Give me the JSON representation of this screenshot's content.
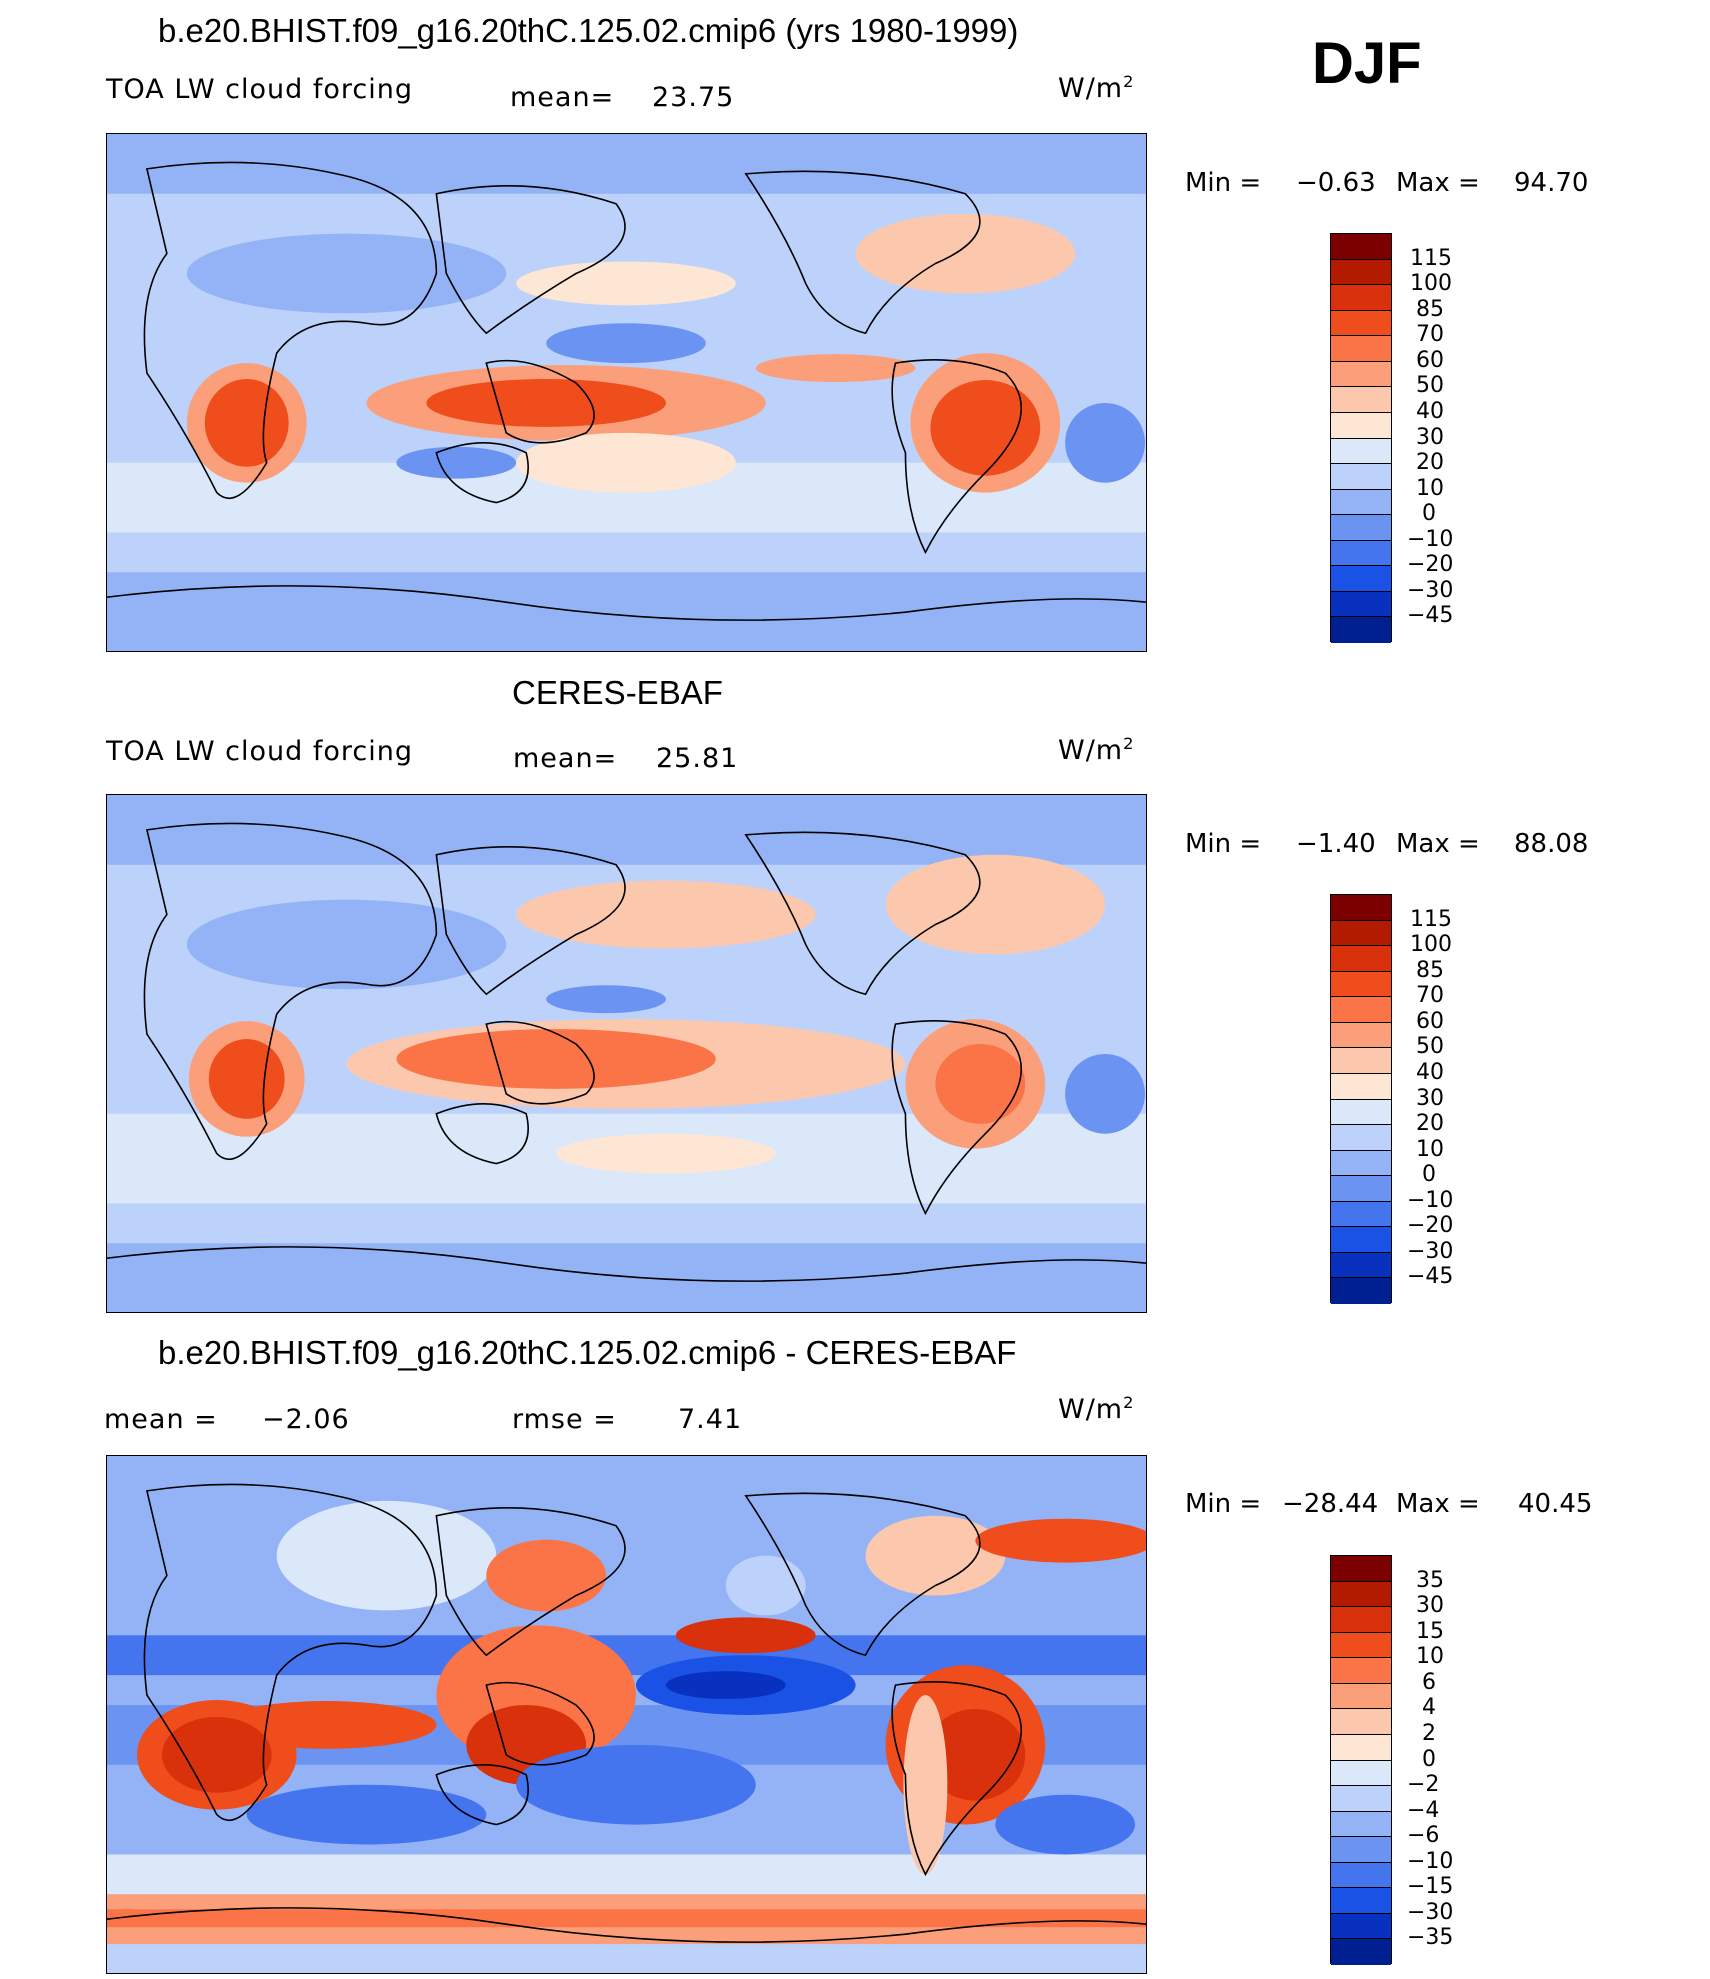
{
  "season": "DJF",
  "units": "W/m",
  "units_exp": "2",
  "panels": [
    {
      "title": "b.e20.BHIST.f09_g16.20thC.125.02.cmip6 (yrs 1980-1999)",
      "left_label": "TOA LW cloud forcing",
      "stat_label": "mean=",
      "stat_value": "23.75",
      "min_label": "Min  =",
      "min_value": "−0.63",
      "max_label": "Max  =",
      "max_value": "94.70"
    },
    {
      "title": "CERES-EBAF",
      "left_label": "TOA LW cloud forcing",
      "stat_label": "mean=",
      "stat_value": "25.81",
      "min_label": "Min  =",
      "min_value": "−1.40",
      "max_label": "Max  =",
      "max_value": "88.08"
    },
    {
      "title": "b.e20.BHIST.f09_g16.20thC.125.02.cmip6 - CERES-EBAF",
      "left_label": "mean  =",
      "left_value": "−2.06",
      "stat_label": "rmse  =",
      "stat_value": "7.41",
      "min_label": "Min  =",
      "min_value": "−28.44",
      "max_label": "Max  =",
      "max_value": "40.45"
    }
  ],
  "colorbar_abs": {
    "labels": [
      "115",
      "100",
      "85",
      "70",
      "60",
      "50",
      "40",
      "30",
      "20",
      "10",
      "0",
      "−10",
      "−20",
      "−30",
      "−45"
    ],
    "colors": [
      "#7d0000",
      "#b21b00",
      "#d8310b",
      "#f04d1c",
      "#fb7447",
      "#fb9e7a",
      "#fcc8ad",
      "#fde6d3",
      "#dbe8fa",
      "#bcd2fb",
      "#94b3f7",
      "#6b93f2",
      "#4474ee",
      "#1b52e6",
      "#0831c0",
      "#001f91"
    ]
  },
  "colorbar_diff": {
    "labels": [
      "35",
      "30",
      "15",
      "10",
      "6",
      "4",
      "2",
      "0",
      "−2",
      "−4",
      "−6",
      "−10",
      "−15",
      "−30",
      "−35"
    ],
    "colors": [
      "#7d0000",
      "#b21b00",
      "#d8310b",
      "#f04d1c",
      "#fb7447",
      "#fb9e7a",
      "#fcc8ad",
      "#fde6d3",
      "#dbe8fa",
      "#bcd2fb",
      "#94b3f7",
      "#6b93f2",
      "#4474ee",
      "#1b52e6",
      "#0831c0",
      "#001f91"
    ]
  },
  "chart_data": [
    {
      "type": "heatmap",
      "title": "b.e20.BHIST.f09_g16.20thC.125.02.cmip6 (yrs 1980-1999)",
      "variable": "TOA LW cloud forcing",
      "mean": 23.75,
      "min": -0.63,
      "max": 94.7,
      "levels": [
        -45,
        -30,
        -20,
        -10,
        0,
        10,
        20,
        30,
        40,
        50,
        60,
        70,
        85,
        100,
        115
      ]
    },
    {
      "type": "heatmap",
      "title": "CERES-EBAF",
      "variable": "TOA LW cloud forcing",
      "mean": 25.81,
      "min": -1.4,
      "max": 88.08,
      "levels": [
        -45,
        -30,
        -20,
        -10,
        0,
        10,
        20,
        30,
        40,
        50,
        60,
        70,
        85,
        100,
        115
      ]
    },
    {
      "type": "heatmap",
      "title": "b.e20.BHIST.f09_g16.20thC.125.02.cmip6 - CERES-EBAF",
      "mean": -2.06,
      "rmse": 7.41,
      "min": -28.44,
      "max": 40.45,
      "levels": [
        -35,
        -30,
        -15,
        -10,
        -6,
        -4,
        -2,
        0,
        2,
        4,
        6,
        10,
        15,
        30,
        35
      ]
    }
  ]
}
